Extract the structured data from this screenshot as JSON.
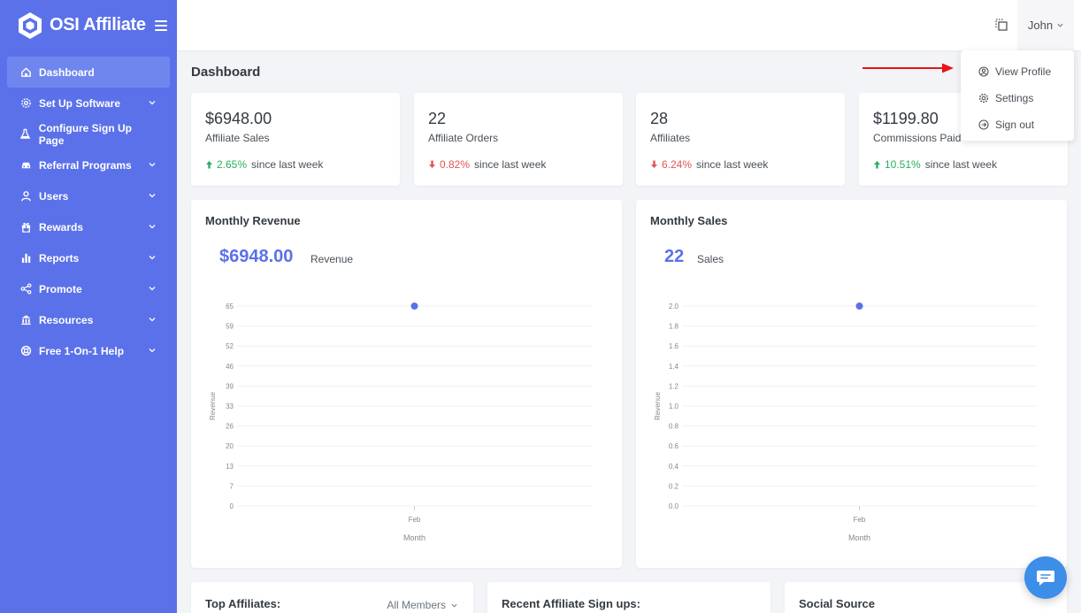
{
  "brand": {
    "name": "OSI Affiliate"
  },
  "sidebar": {
    "items": [
      {
        "label": "Dashboard",
        "icon": "home-icon",
        "active": true,
        "chevron": false
      },
      {
        "label": "Set Up Software",
        "icon": "gear-icon",
        "chevron": true
      },
      {
        "label": "Configure Sign Up Page",
        "icon": "flask-icon",
        "chevron": false
      },
      {
        "label": "Referral Programs",
        "icon": "car-icon",
        "chevron": true
      },
      {
        "label": "Users",
        "icon": "user-icon",
        "chevron": true
      },
      {
        "label": "Rewards",
        "icon": "gift-icon",
        "chevron": true
      },
      {
        "label": "Reports",
        "icon": "bar-chart-icon",
        "chevron": true
      },
      {
        "label": "Promote",
        "icon": "share-icon",
        "chevron": true
      },
      {
        "label": "Resources",
        "icon": "bank-icon",
        "chevron": true
      },
      {
        "label": "Free 1-On-1 Help",
        "icon": "lifebuoy-icon",
        "chevron": true
      }
    ]
  },
  "topbar": {
    "user_name": "John"
  },
  "dropdown": {
    "items": [
      {
        "label": "View Profile",
        "icon": "user-circle-icon"
      },
      {
        "label": "Settings",
        "icon": "gear-icon"
      },
      {
        "label": "Sign out",
        "icon": "sign-out-icon"
      }
    ]
  },
  "page": {
    "title": "Dashboard"
  },
  "stats": [
    {
      "value": "$6948.00",
      "label": "Affiliate Sales",
      "change": "2.65%",
      "direction": "up",
      "suffix": "since last week"
    },
    {
      "value": "22",
      "label": "Affiliate Orders",
      "change": "0.82%",
      "direction": "down",
      "suffix": "since last week"
    },
    {
      "value": "28",
      "label": "Affiliates",
      "change": "6.24%",
      "direction": "down",
      "suffix": "since last week"
    },
    {
      "value": "$1199.80",
      "label": "Commissions Paid",
      "change": "10.51%",
      "direction": "up",
      "suffix": "since last week"
    }
  ],
  "revenue_card": {
    "title": "Monthly Revenue",
    "big_value": "$6948.00",
    "big_label": "Revenue"
  },
  "sales_card": {
    "title": "Monthly Sales",
    "big_value": "22",
    "big_label": "Sales"
  },
  "bottom": {
    "top_affiliates": {
      "title": "Top Affiliates:",
      "filter": "All Members"
    },
    "recent_signups": {
      "title": "Recent Affiliate Sign ups:"
    },
    "social_source": {
      "title": "Social Source"
    }
  },
  "colors": {
    "sidebar": "#5b71ea",
    "accent": "#5b71ea",
    "up": "#27ae60",
    "down": "#e55353",
    "chat": "#3d8ee8"
  },
  "chart_data": [
    {
      "type": "scatter",
      "title": "",
      "xlabel": "Month",
      "ylabel": "Revenue",
      "categories": [
        "Feb"
      ],
      "values": [
        65
      ],
      "ylim": [
        0,
        65
      ],
      "yticks": [
        "0",
        "7",
        "13",
        "20",
        "26",
        "33",
        "39",
        "46",
        "52",
        "59",
        "65"
      ],
      "grid": true
    },
    {
      "type": "scatter",
      "title": "",
      "xlabel": "Month",
      "ylabel": "Revenue",
      "categories": [
        "Feb"
      ],
      "values": [
        2.0
      ],
      "ylim": [
        0,
        2.0
      ],
      "yticks": [
        "0.0",
        "0.2",
        "0.4",
        "0.6",
        "0.8",
        "1.0",
        "1.2",
        "1.4",
        "1.6",
        "1.8",
        "2.0"
      ],
      "grid": true
    }
  ]
}
